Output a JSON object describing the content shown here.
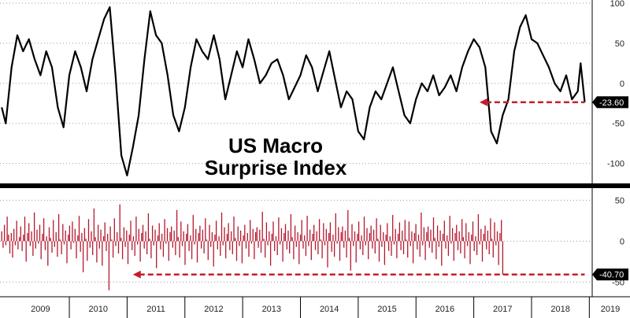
{
  "chart_data": [
    {
      "type": "line",
      "title": "US Macro Surprise Index",
      "title_lines": [
        "US Macro",
        "Surprise Index"
      ],
      "ylim": [
        -120,
        100
      ],
      "y_ticks": [
        100,
        50,
        0,
        -50,
        -100
      ],
      "y_tick_labels": [
        "100",
        "50",
        "0",
        "-50",
        "-100"
      ],
      "last_value": -23.6,
      "last_value_label": "-23.60",
      "line_color": "#000000",
      "arrow_color": "#c41e2e",
      "arrow_y": -23.6,
      "arrow_x_range": [
        2017.1,
        2018.92
      ],
      "x": [
        2008.83,
        2008.9,
        2009.0,
        2009.1,
        2009.2,
        2009.3,
        2009.4,
        2009.5,
        2009.6,
        2009.7,
        2009.8,
        2009.9,
        2010.0,
        2010.1,
        2010.2,
        2010.3,
        2010.4,
        2010.5,
        2010.6,
        2010.7,
        2010.8,
        2010.9,
        2011.0,
        2011.1,
        2011.2,
        2011.3,
        2011.4,
        2011.5,
        2011.6,
        2011.7,
        2011.8,
        2011.9,
        2012.0,
        2012.1,
        2012.2,
        2012.3,
        2012.4,
        2012.5,
        2012.6,
        2012.7,
        2012.8,
        2012.9,
        2013.0,
        2013.1,
        2013.2,
        2013.3,
        2013.4,
        2013.5,
        2013.6,
        2013.7,
        2013.8,
        2013.9,
        2014.0,
        2014.1,
        2014.2,
        2014.3,
        2014.4,
        2014.5,
        2014.6,
        2014.7,
        2014.8,
        2014.9,
        2015.0,
        2015.1,
        2015.2,
        2015.3,
        2015.4,
        2015.5,
        2015.6,
        2015.7,
        2015.8,
        2015.9,
        2016.0,
        2016.1,
        2016.2,
        2016.3,
        2016.4,
        2016.5,
        2016.6,
        2016.7,
        2016.8,
        2016.9,
        2017.0,
        2017.1,
        2017.2,
        2017.3,
        2017.4,
        2017.5,
        2017.6,
        2017.7,
        2017.8,
        2017.9,
        2018.0,
        2018.1,
        2018.2,
        2018.3,
        2018.4,
        2018.5,
        2018.6,
        2018.7,
        2018.8,
        2018.85,
        2018.92
      ],
      "y": [
        -30,
        -50,
        20,
        60,
        40,
        55,
        30,
        10,
        40,
        20,
        -30,
        -55,
        10,
        40,
        20,
        -10,
        30,
        55,
        80,
        95,
        10,
        -90,
        -115,
        -80,
        -40,
        30,
        90,
        60,
        50,
        10,
        -40,
        -60,
        -30,
        20,
        55,
        40,
        30,
        60,
        30,
        -20,
        10,
        40,
        20,
        55,
        30,
        0,
        10,
        25,
        30,
        10,
        -20,
        -5,
        10,
        35,
        20,
        -10,
        15,
        40,
        5,
        -30,
        -10,
        -20,
        -60,
        -70,
        -30,
        -10,
        -20,
        0,
        20,
        -10,
        -40,
        -50,
        -20,
        0,
        -10,
        10,
        -15,
        -5,
        10,
        -10,
        20,
        40,
        55,
        45,
        20,
        -60,
        -75,
        -40,
        -20,
        40,
        70,
        85,
        55,
        50,
        35,
        20,
        0,
        -10,
        10,
        -20,
        -10,
        25,
        -23.6
      ],
      "id": "surprise-index"
    },
    {
      "type": "bar",
      "ylim": [
        -65,
        60
      ],
      "y_ticks": [
        50,
        0,
        -50
      ],
      "y_tick_labels": [
        "50",
        "0",
        "-50"
      ],
      "last_value": -40.7,
      "last_value_label": "-40.70",
      "bar_color": "#b5172d",
      "arrow_color": "#c41e2e",
      "arrow_y": -40.7,
      "arrow_x_range": [
        2011.1,
        2018.92
      ],
      "x_start": 2008.83,
      "x_step": 0.0235,
      "values": [
        12,
        -8,
        20,
        -5,
        30,
        8,
        -15,
        10,
        -20,
        15,
        -5,
        25,
        -10,
        5,
        18,
        -12,
        8,
        30,
        -25,
        10,
        22,
        -6,
        12,
        -18,
        35,
        -9,
        14,
        -3,
        20,
        -22,
        9,
        28,
        -11,
        6,
        -30,
        17,
        4,
        -14,
        26,
        -7,
        11,
        -19,
        33,
        2,
        -16,
        21,
        -4,
        13,
        -27,
        8,
        19,
        -10,
        24,
        -2,
        15,
        -21,
        7,
        31,
        -13,
        10,
        -38,
        16,
        3,
        -24,
        27,
        -8,
        12,
        -17,
        40,
        5,
        -26,
        20,
        -9,
        14,
        -30,
        6,
        23,
        -12,
        9,
        -60,
        18,
        2,
        -20,
        28,
        -6,
        11,
        -15,
        45,
        4,
        -22,
        17,
        -7,
        13,
        -28,
        8,
        25,
        -11,
        6,
        -18,
        30,
        -4,
        15,
        -25,
        10,
        20,
        -9,
        12,
        -16,
        34,
        3,
        -21,
        19,
        -5,
        14,
        -33,
        7,
        22,
        -10,
        9,
        -19,
        27,
        -3,
        16,
        -24,
        11,
        18,
        -8,
        13,
        -17,
        38,
        5,
        -20,
        24,
        -6,
        12,
        -29,
        9,
        21,
        -12,
        7,
        -22,
        32,
        -4,
        15,
        -26,
        10,
        19,
        -9,
        14,
        -15,
        28,
        2,
        -23,
        20,
        -7,
        11,
        -31,
        8,
        25,
        -10,
        6,
        -18,
        35,
        -5,
        17,
        -21,
        9,
        22,
        -11,
        12,
        -16,
        30,
        4,
        -24,
        18,
        -6,
        13,
        -27,
        7,
        20,
        -9,
        10,
        -19,
        26,
        -3,
        15,
        -22,
        11,
        17,
        -8,
        14,
        -14,
        36,
        3,
        -20,
        23,
        -5,
        12,
        -30,
        9,
        24,
        -12,
        6,
        -17,
        29,
        -4,
        16,
        -25,
        10,
        21,
        -10,
        13,
        -15,
        33,
        5,
        -22,
        19,
        -7,
        11,
        -28,
        8,
        26,
        -9,
        7,
        -18,
        31,
        -6,
        14,
        -23,
        9,
        20,
        -11,
        12,
        -16,
        27,
        2,
        -21,
        22,
        -5,
        15,
        -32,
        10,
        23,
        -13,
        8,
        -19,
        34,
        -3,
        17,
        -24,
        11,
        18,
        -8,
        13,
        -20,
        38,
        4,
        -36,
        21,
        -6,
        12,
        -26,
        9,
        24,
        -10,
        7,
        -17,
        30,
        -5,
        16,
        -22,
        10,
        19,
        -9,
        14,
        -15,
        28,
        3,
        -25,
        20,
        -7,
        11,
        -29,
        8,
        22,
        -12,
        6,
        -18,
        32,
        -4,
        15,
        -21,
        9,
        23,
        -11,
        13,
        -16,
        26,
        2,
        -20,
        24,
        -6,
        12,
        -27,
        10,
        21,
        -10,
        8,
        -19,
        35,
        -5,
        17,
        -23,
        11,
        18,
        -8,
        14,
        -14,
        29,
        4,
        -22,
        19,
        -7,
        13,
        -30,
        9,
        25,
        -9,
        7,
        -18,
        31,
        -3,
        16,
        -24,
        10,
        20,
        -11,
        12,
        -15,
        27,
        5,
        -21,
        22,
        -6,
        11,
        -28,
        8,
        24,
        -12,
        6,
        -17,
        33,
        -4,
        15,
        -25,
        9,
        19,
        -10,
        13,
        -16,
        28,
        3,
        -20,
        23,
        -5,
        12,
        -29,
        10,
        26,
        -40.7
      ],
      "id": "monthly-change"
    }
  ],
  "x_axis": {
    "tick_labels": [
      "2009",
      "2010",
      "2011",
      "2012",
      "2013",
      "2014",
      "2015",
      "2016",
      "2017",
      "2018",
      "2019"
    ],
    "label_years": [
      2009,
      2010,
      2011,
      2012,
      2013,
      2014,
      2015,
      2016,
      2017,
      2018,
      2019
    ],
    "boundary_years": [
      2010,
      2011,
      2012,
      2013,
      2014,
      2015,
      2016,
      2017,
      2018,
      2019
    ],
    "range": [
      2008.8,
      2019.05
    ]
  },
  "colors": {
    "badge": "#000000",
    "grid": "#999999"
  }
}
